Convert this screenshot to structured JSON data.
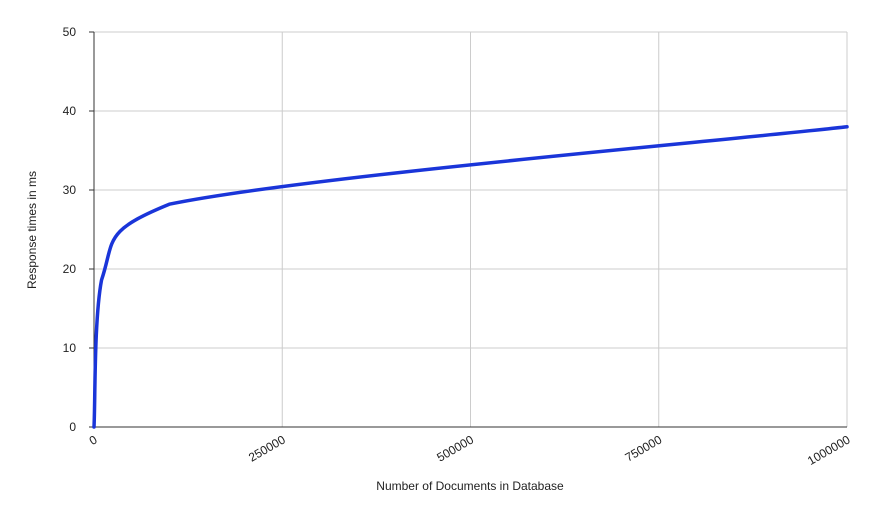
{
  "chart_data": {
    "type": "line",
    "title": "",
    "xlabel": "Number of Documents in Database",
    "ylabel": "Response times in ms",
    "xlim": [
      0,
      1000000
    ],
    "ylim": [
      0,
      50
    ],
    "xticks": [
      "0",
      "250000",
      "500000",
      "750000",
      "1000000"
    ],
    "xtick_values": [
      0,
      250000,
      500000,
      750000,
      1000000
    ],
    "yticks": [
      "0",
      "10",
      "20",
      "30",
      "40",
      "50"
    ],
    "ytick_values": [
      0,
      10,
      20,
      30,
      40,
      50
    ],
    "grid": true,
    "smooth": true,
    "series": [
      {
        "color": "#1a35d9",
        "x": [
          0,
          10000,
          100000,
          1000000
        ],
        "y": [
          0,
          18.6,
          28.2,
          38
        ]
      }
    ]
  }
}
